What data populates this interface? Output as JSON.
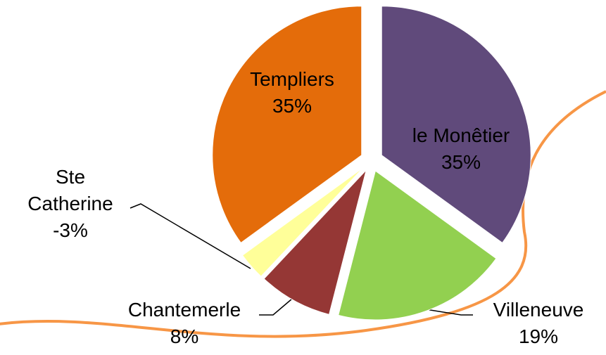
{
  "chart_data": {
    "type": "pie",
    "categories": [
      "le Monêtier",
      "Villeneuve",
      "Chantemerle",
      "Ste Catherine",
      "Templiers"
    ],
    "values": [
      35,
      19,
      8,
      -3,
      35
    ],
    "value_labels": [
      "35%",
      "19%",
      "8%",
      "-3%",
      "35%"
    ],
    "colors": [
      "#604a7b",
      "#92d050",
      "#953735",
      "#ffff99",
      "#e46c0a"
    ]
  }
}
